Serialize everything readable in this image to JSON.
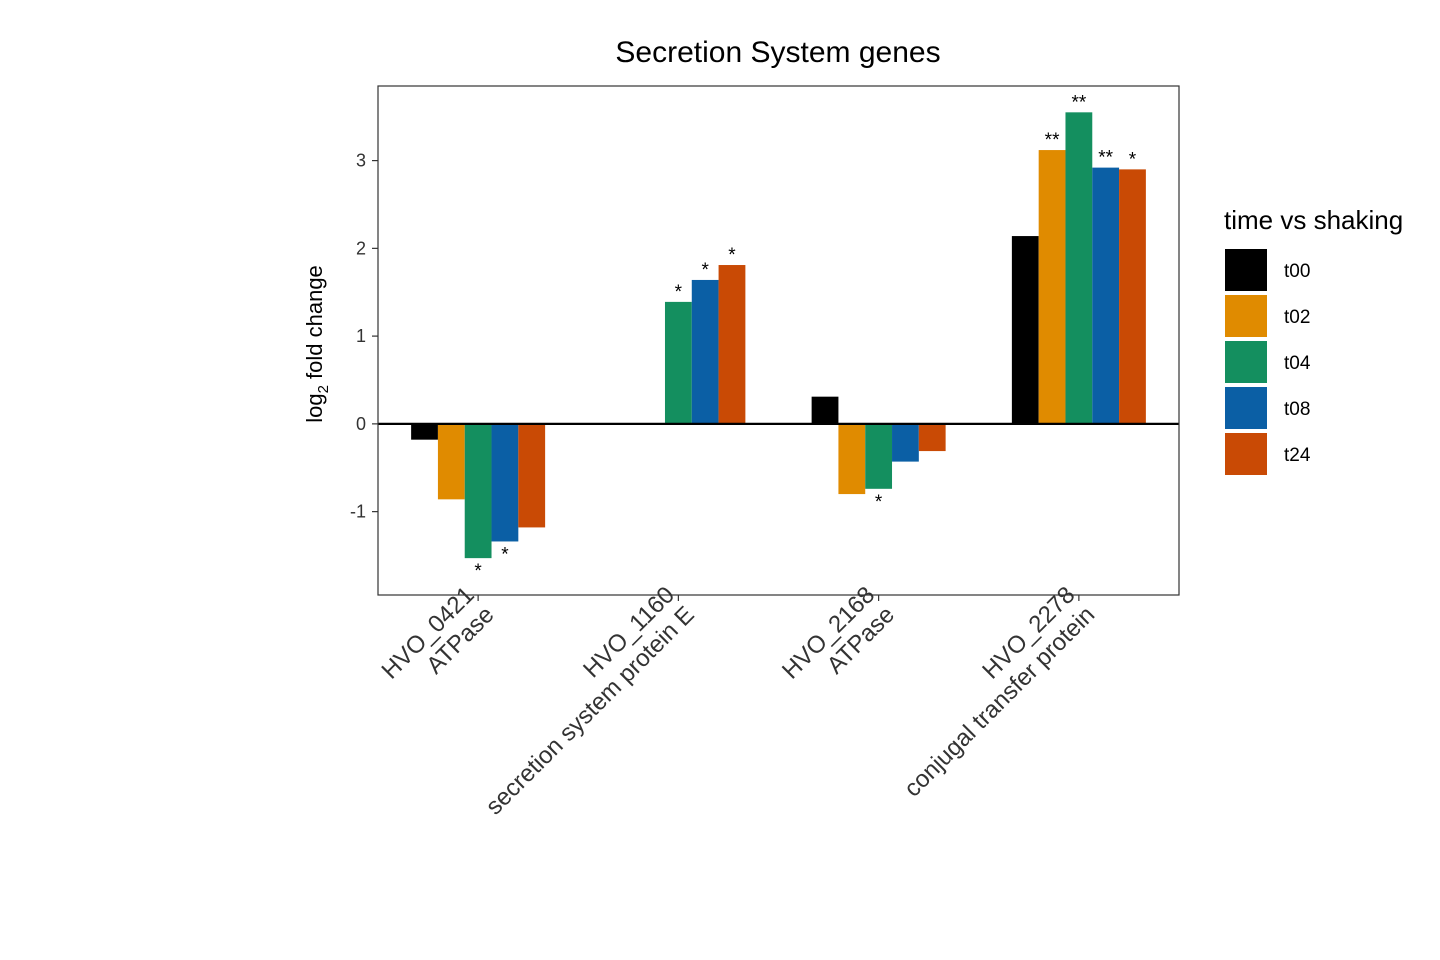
{
  "chart_data": {
    "type": "bar",
    "title": "Secretion System genes",
    "xlabel": "",
    "ylabel": {
      "prefix": "log",
      "subscript": "2",
      "suffix": " fold change"
    },
    "ylim": [
      -1.95,
      3.85
    ],
    "yticks": [
      -1,
      0,
      1,
      2,
      3
    ],
    "grid": false,
    "legend_position": "right",
    "legend_title": "time vs shaking",
    "categories": [
      {
        "line1": "HVO_0421",
        "line2": "ATPase"
      },
      {
        "line1": "HVO_1160",
        "line2": "secretion system protein E"
      },
      {
        "line1": "HVO_2168",
        "line2": "ATPase"
      },
      {
        "line1": "HVO_2278",
        "line2": "conjugal transfer protein"
      }
    ],
    "series": [
      {
        "name": "t00",
        "color": "#000000",
        "values": [
          -0.18,
          null,
          0.31,
          2.14
        ],
        "significance": [
          "",
          "",
          "",
          ""
        ]
      },
      {
        "name": "t02",
        "color": "#E08B00",
        "values": [
          -0.86,
          null,
          -0.8,
          3.12
        ],
        "significance": [
          "",
          "",
          "",
          "**"
        ]
      },
      {
        "name": "t04",
        "color": "#148F5F",
        "values": [
          -1.53,
          1.39,
          -0.74,
          3.55
        ],
        "significance": [
          "*",
          "*",
          "*",
          "**"
        ]
      },
      {
        "name": "t08",
        "color": "#0B5FA5",
        "values": [
          -1.34,
          1.64,
          -0.43,
          2.92
        ],
        "significance": [
          "*",
          "*",
          "",
          "**"
        ]
      },
      {
        "name": "t24",
        "color": "#C94A05",
        "values": [
          -1.18,
          1.81,
          -0.31,
          2.9
        ],
        "significance": [
          "",
          "*",
          "",
          "*"
        ]
      }
    ]
  }
}
